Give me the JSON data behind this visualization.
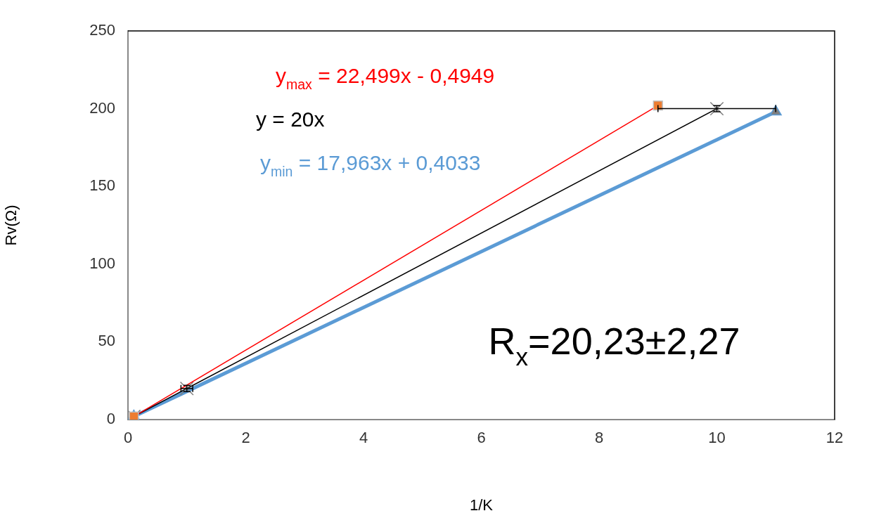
{
  "chart_data": {
    "type": "line",
    "xlabel": "1/K",
    "ylabel": "Rv(Ω)",
    "xlim": [
      0,
      12
    ],
    "xticks": [
      0,
      2,
      4,
      6,
      8,
      10,
      12
    ],
    "ylim": [
      0,
      250
    ],
    "yticks": [
      0,
      50,
      100,
      150,
      200,
      250
    ],
    "grid": false,
    "legend": false,
    "line_style": "solid",
    "series": [
      {
        "name": "y$_{max}$ = 22,499x - 0,4949",
        "color": "#ff0000",
        "colors": [
          "#ed7d31",
          "#ed7d31"
        ],
        "marker": "square",
        "x": [
          0.1,
          9
        ],
        "values": [
          2,
          202
        ]
      },
      {
        "name": "y = 20x",
        "color": "#000000",
        "marker": "cross",
        "x": [
          0.1,
          1,
          10
        ],
        "values": [
          2,
          20,
          200
        ],
        "errors": [
          null,
          2,
          2
        ],
        "xerrors": [
          null,
          0.1,
          1
        ]
      },
      {
        "name": "y$_{min}$ = 17,963x + 0,4033",
        "color": "#5b9bd5",
        "colors": [
          "#7f7f7f",
          "#7f7f7f"
        ],
        "marker": "triangle",
        "x": [
          0.1,
          11
        ],
        "values": [
          2,
          198
        ]
      }
    ],
    "annotations": [
      "R$_{x}$=20,23±2,27"
    ]
  }
}
